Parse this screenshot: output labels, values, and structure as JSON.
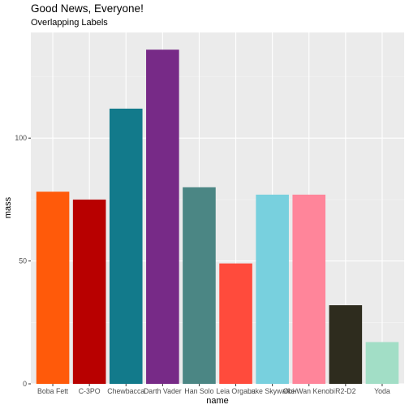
{
  "chart_data": {
    "type": "bar",
    "title": "Good News, Everyone!",
    "subtitle": "Overlapping Labels",
    "xlabel": "name",
    "ylabel": "mass",
    "categories": [
      "Boba Fett",
      "C-3PO",
      "Chewbacca",
      "Darth Vader",
      "Han Solo",
      "Leia Organa",
      "Luke Skywalker",
      "Obi-Wan Kenobi",
      "R2-D2",
      "Yoda"
    ],
    "values": [
      78.2,
      75,
      112,
      136,
      80,
      49,
      77,
      77,
      32,
      17
    ],
    "colors": [
      "#ff5a0a",
      "#b80000",
      "#127a8b",
      "#772a87",
      "#4b8684",
      "#ff4b3c",
      "#78d0de",
      "#ff859a",
      "#2e2c1e",
      "#a2dec6"
    ],
    "ylim": [
      0,
      143
    ],
    "yticks": [
      0,
      50,
      100
    ],
    "grid": true,
    "legend": "none"
  }
}
